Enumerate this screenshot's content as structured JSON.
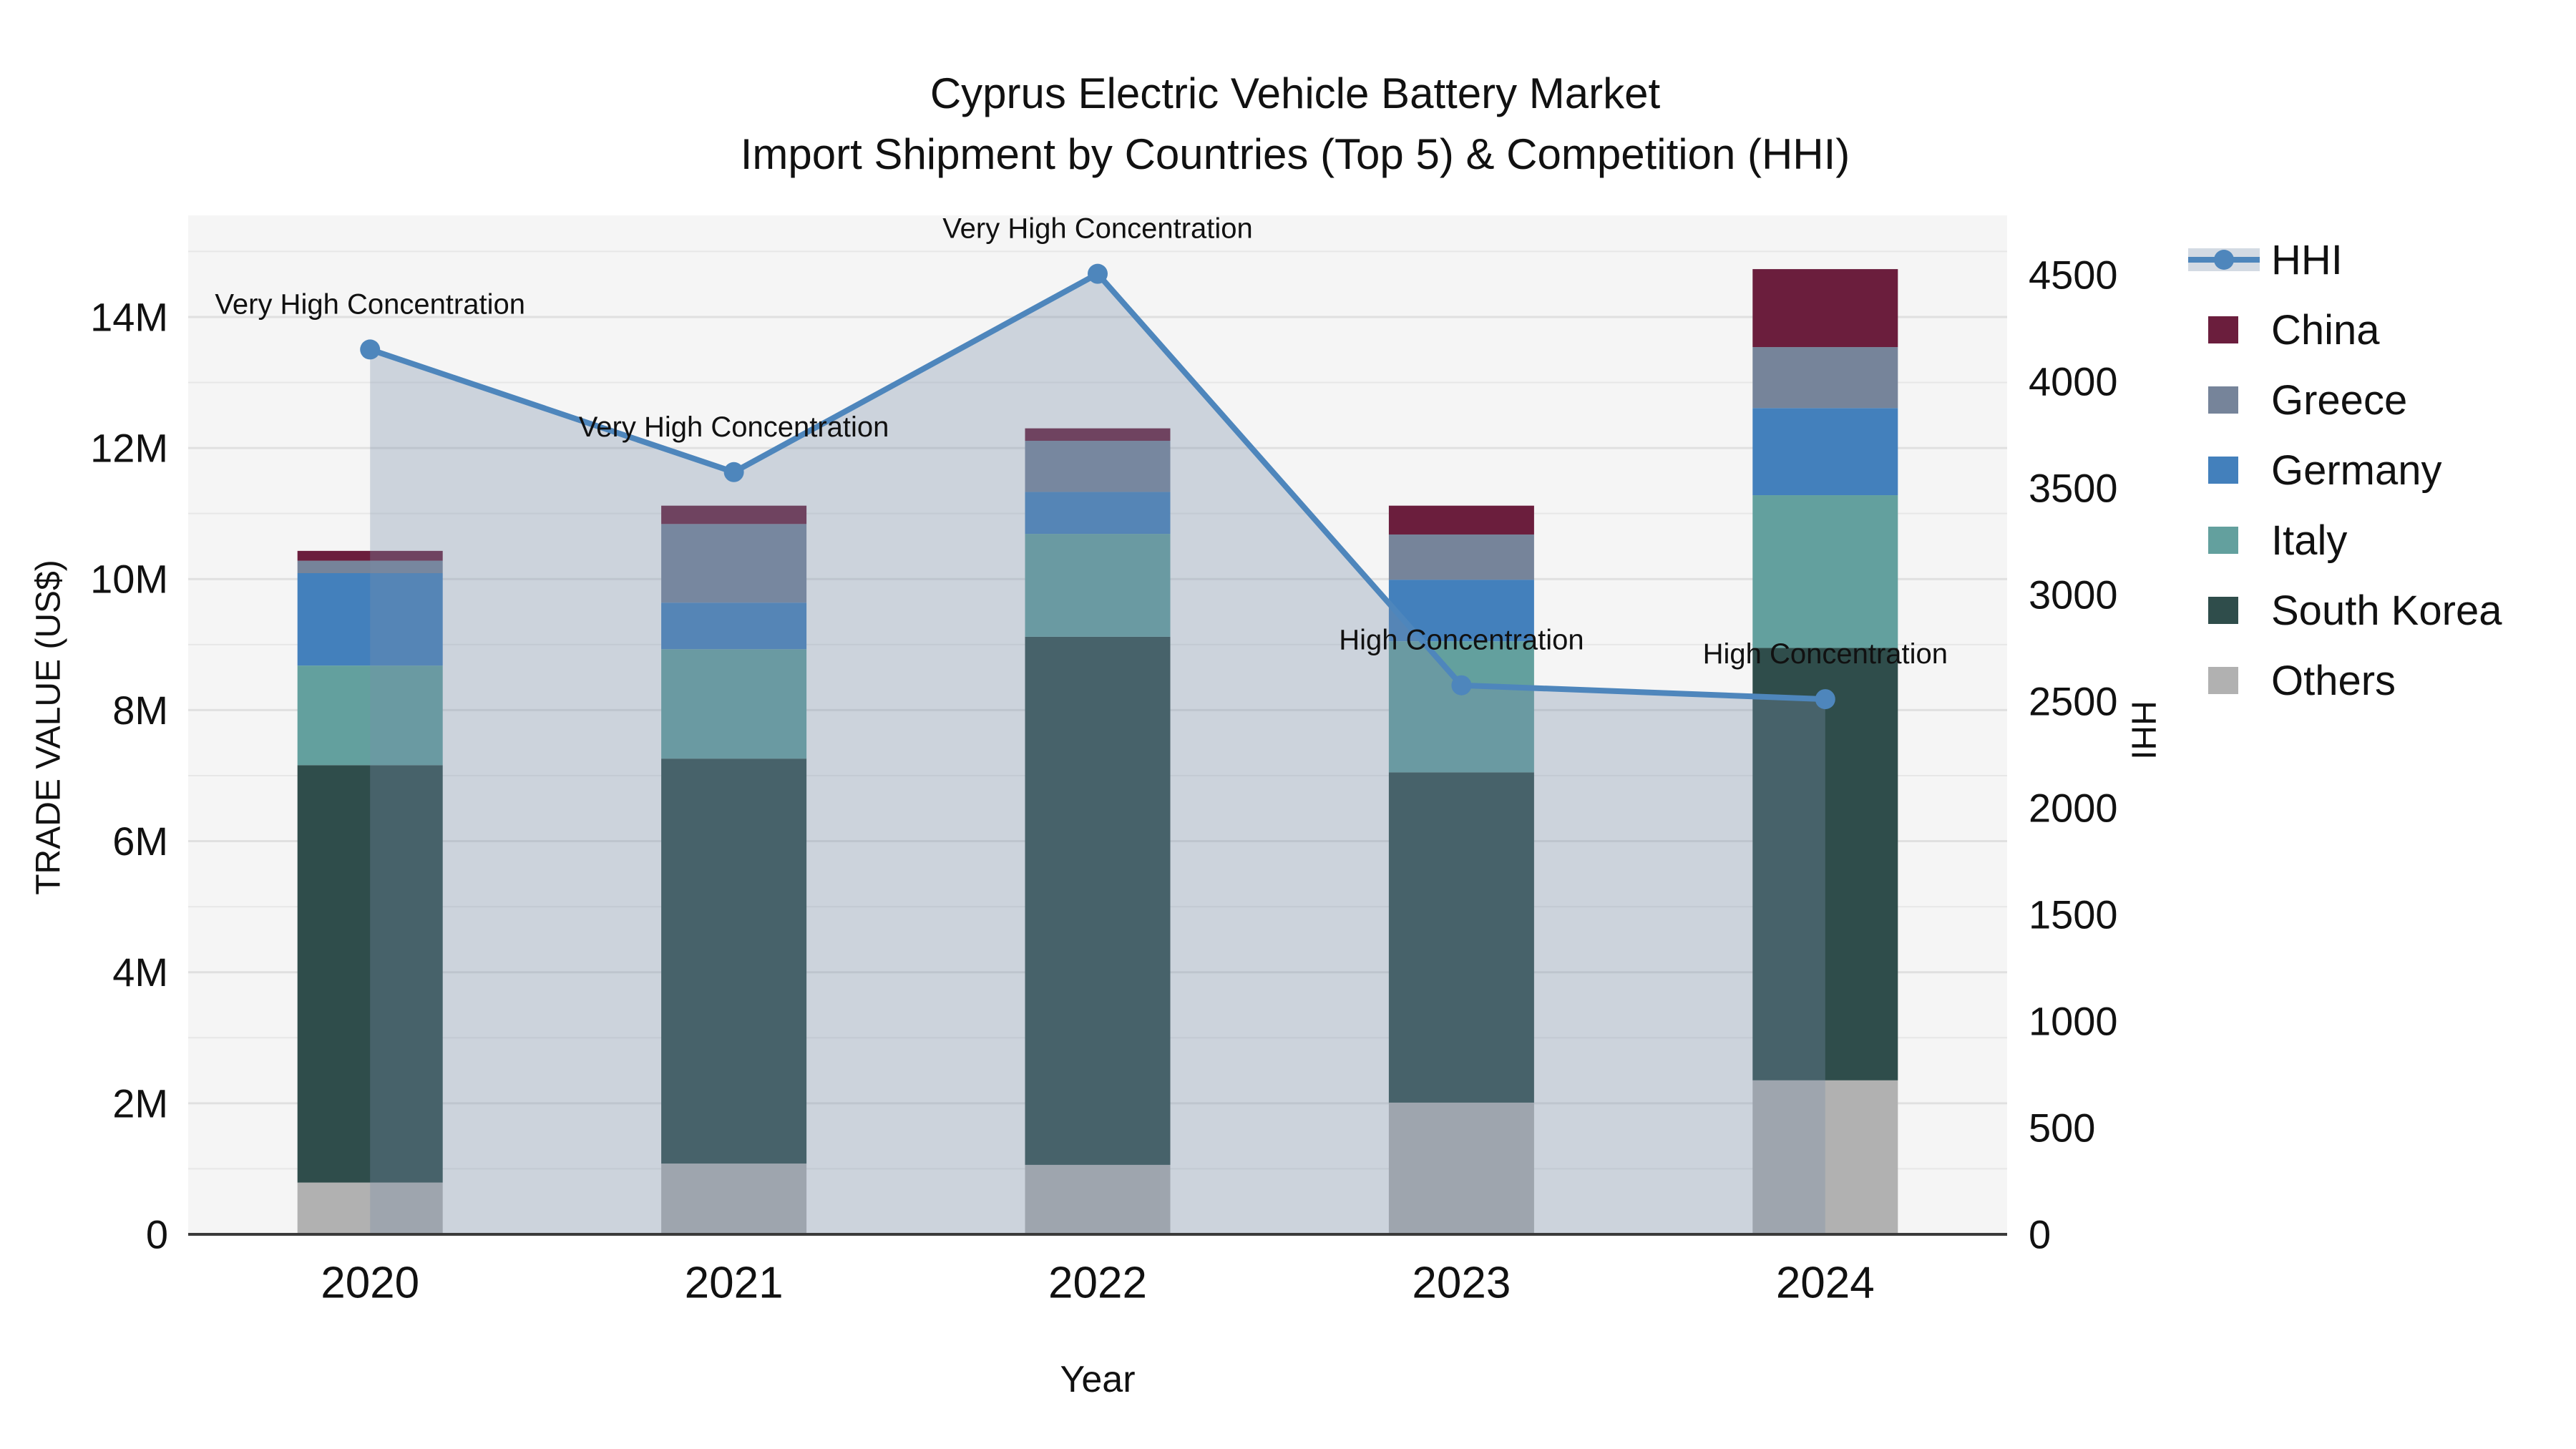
{
  "figure": {
    "title_line1": "Cyprus Electric Vehicle Battery Market",
    "title_line2": "Import Shipment by Countries (Top 5) & Competition (HHI)"
  },
  "chart_data": {
    "type": "combo: stacked bar + line",
    "unit": "bar values in million US$, line values in HHI points",
    "categories": [
      "2020",
      "2021",
      "2022",
      "2023",
      "2024"
    ],
    "series": [
      {
        "name": "Others",
        "color": "#b1b1b1",
        "values": [
          0.79,
          1.08,
          1.06,
          2.01,
          2.35
        ]
      },
      {
        "name": "South Korea",
        "color": "#2f4d4b",
        "values": [
          6.37,
          6.18,
          8.06,
          5.04,
          6.6
        ]
      },
      {
        "name": "Italy",
        "color": "#63a09e",
        "values": [
          1.52,
          1.67,
          1.57,
          2.0,
          2.33
        ]
      },
      {
        "name": "Germany",
        "color": "#4380bc",
        "values": [
          1.41,
          0.71,
          0.64,
          0.94,
          1.33
        ]
      },
      {
        "name": "Greece",
        "color": "#76849a",
        "values": [
          0.19,
          1.2,
          0.78,
          0.69,
          0.93
        ]
      },
      {
        "name": "China",
        "color": "#6b1e3d",
        "values": [
          0.15,
          0.28,
          0.19,
          0.44,
          1.19
        ]
      }
    ],
    "bar_totals": [
      10.43,
      11.12,
      12.3,
      11.12,
      14.73
    ],
    "line": {
      "name": "HHI",
      "color": "#4e86bc",
      "area_fill": "rgba(122,143,170,0.33)",
      "values": [
        4150,
        3575,
        4505,
        2575,
        2510
      ],
      "annotations": [
        "Very High Concentration",
        "Very High Concentration",
        "Very High Concentration",
        "High Concentration",
        "High Concentration"
      ]
    },
    "y1": {
      "label": "TRADE VALUE (US$)",
      "tick_values": [
        0,
        2,
        4,
        6,
        8,
        10,
        12,
        14
      ],
      "tick_labels": [
        "0",
        "2M",
        "4M",
        "6M",
        "8M",
        "10M",
        "12M",
        "14M"
      ],
      "max": 15.55,
      "grid_step": 1
    },
    "y2": {
      "label": "HHI",
      "tick_values": [
        0,
        500,
        1000,
        1500,
        2000,
        2500,
        3000,
        3500,
        4000,
        4500
      ],
      "tick_labels": [
        "0",
        "500",
        "1000",
        "1500",
        "2000",
        "2500",
        "3000",
        "3500",
        "4000",
        "4500"
      ],
      "max": 4779
    },
    "x": {
      "label": "Year"
    },
    "legend": {
      "items": [
        "HHI",
        "China",
        "Greece",
        "Germany",
        "Italy",
        "South Korea",
        "Others"
      ]
    },
    "layout": {
      "plot_bg": "#f5f5f5",
      "grid_color": "#e7e7e7",
      "grid_color_major": "#e0e0e0",
      "axis_line_color": "#3a3a3a",
      "legend_position": "right",
      "grid": "horizontal, every 1M"
    }
  }
}
